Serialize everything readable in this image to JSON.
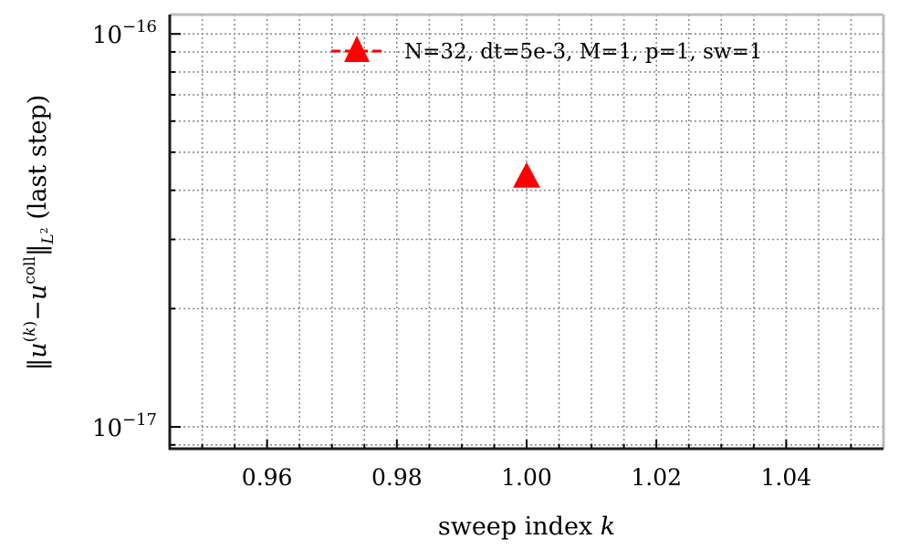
{
  "chart_data": {
    "type": "scatter",
    "title": "",
    "xlabel": "sweep index k",
    "ylabel": "||u^(k) − u^coll||_L² (last step)",
    "xlim": [
      0.945,
      1.055
    ],
    "ylim": [
      8.8e-18,
      1.12e-16
    ],
    "yscale": "log",
    "grid": true,
    "legend_position": "top-right",
    "x_ticks": [
      "0.96",
      "0.98",
      "1.00",
      "1.02",
      "1.04"
    ],
    "y_ticks": [
      {
        "base": "10",
        "exp": "−16",
        "value": 1e-16
      },
      {
        "base": "10",
        "exp": "−17",
        "value": 1e-17
      }
    ],
    "series": [
      {
        "name": "N=32, dt=5e-3, M=1, p=1, sw=1",
        "color": "#ff0000",
        "marker": "triangle",
        "line": "dashed",
        "x": [
          1.0
        ],
        "y": [
          4.3e-17
        ]
      }
    ]
  }
}
